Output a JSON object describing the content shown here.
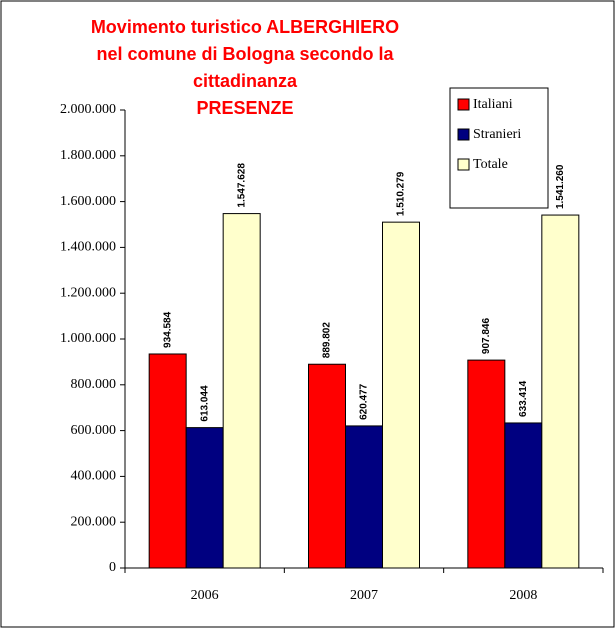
{
  "chart_data": {
    "type": "bar",
    "title": [
      "Movimento turistico ALBERGHIERO",
      "nel comune di Bologna secondo la",
      "cittadinanza",
      "PRESENZE"
    ],
    "categories": [
      "2006",
      "2007",
      "2008"
    ],
    "series": [
      {
        "name": "Italiani",
        "color": "#ff0000",
        "values": [
          934584,
          889802,
          907846
        ],
        "value_labels": [
          "934.584",
          "889.802",
          "907.846"
        ]
      },
      {
        "name": "Stranieri",
        "color": "#000080",
        "values": [
          613044,
          620477,
          633414
        ],
        "value_labels": [
          "613.044",
          "620.477",
          "633.414"
        ]
      },
      {
        "name": "Totale",
        "color": "#ffffcc",
        "values": [
          1547628,
          1510279,
          1541260
        ],
        "value_labels": [
          "1.547.628",
          "1.510.279",
          "1.541.260"
        ]
      }
    ],
    "ylim": [
      0,
      2000000
    ],
    "yticks": [
      0,
      {
        "value": 200000,
        "label": "200.000"
      },
      {
        "value": 400000,
        "label": "400.000"
      },
      {
        "value": 600000,
        "label": "600.000"
      },
      {
        "value": 800000,
        "label": "800.000"
      },
      {
        "value": 1000000,
        "label": "1.000.000"
      },
      {
        "value": 1200000,
        "label": "1.200.000"
      },
      {
        "value": 1400000,
        "label": "1.400.000"
      },
      {
        "value": 1600000,
        "label": "1.600.000"
      },
      {
        "value": 1800000,
        "label": "1.800.000"
      },
      {
        "value": 2000000,
        "label": "2.000.000"
      }
    ],
    "grid": false,
    "legend": "top-right"
  }
}
